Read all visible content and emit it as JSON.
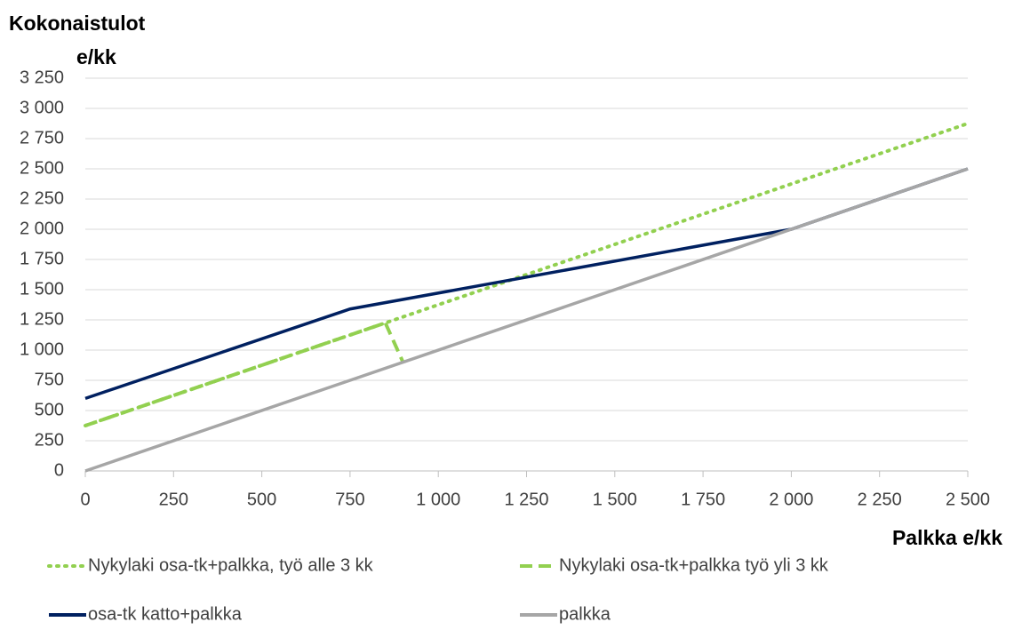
{
  "chart_data": {
    "type": "line",
    "ylabel_lines": [
      "Kokonaistulot",
      "e/kk"
    ],
    "xlabel": "Palkka e/kk",
    "xlim": [
      0,
      2500
    ],
    "xticks": [
      0,
      250,
      500,
      750,
      {
        "value": 1000,
        "label": "1 000"
      },
      {
        "value": 1250,
        "label": "1 250"
      },
      {
        "value": 1500,
        "label": "1 500"
      },
      {
        "value": 1750,
        "label": "1 750"
      },
      {
        "value": 2000,
        "label": "2 000"
      },
      {
        "value": 2250,
        "label": "2 250"
      },
      {
        "value": 2500,
        "label": "2 500"
      }
    ],
    "ylim": [
      0,
      3250
    ],
    "yticks": [
      0,
      250,
      500,
      750,
      {
        "value": 1000,
        "label": "1 000"
      },
      {
        "value": 1250,
        "label": "1 250"
      },
      {
        "value": 1500,
        "label": "1 500"
      },
      {
        "value": 1750,
        "label": "1 750"
      },
      {
        "value": 2000,
        "label": "2 000"
      },
      {
        "value": 2250,
        "label": "2 250"
      },
      {
        "value": 2500,
        "label": "2 500"
      },
      {
        "value": 2750,
        "label": "2 750"
      },
      {
        "value": 3000,
        "label": "3 000"
      },
      {
        "value": 3250,
        "label": "3 250"
      }
    ],
    "grid": true,
    "legend": "bottom",
    "series": [
      {
        "name": "Nykylaki osa-tk+palkka, työ alle 3 kk",
        "color": "#92d050",
        "dash": "dotted",
        "x": [
          0,
          2500
        ],
        "values": [
          375,
          2875
        ]
      },
      {
        "name": "Nykylaki osa-tk+palkka työ yli 3 kk",
        "color": "#92d050",
        "dash": "dashed",
        "x": [
          0,
          850,
          900
        ],
        "values": [
          375,
          1225,
          900
        ]
      },
      {
        "name": "osa-tk katto+palkka",
        "color": "#002060",
        "dash": "solid",
        "x": [
          0,
          750,
          2000,
          2500
        ],
        "values": [
          600,
          1340,
          2000,
          2500
        ]
      },
      {
        "name": "palkka",
        "color": "#a6a6a6",
        "dash": "solid",
        "x": [
          0,
          2500
        ],
        "values": [
          0,
          2500
        ]
      }
    ]
  }
}
